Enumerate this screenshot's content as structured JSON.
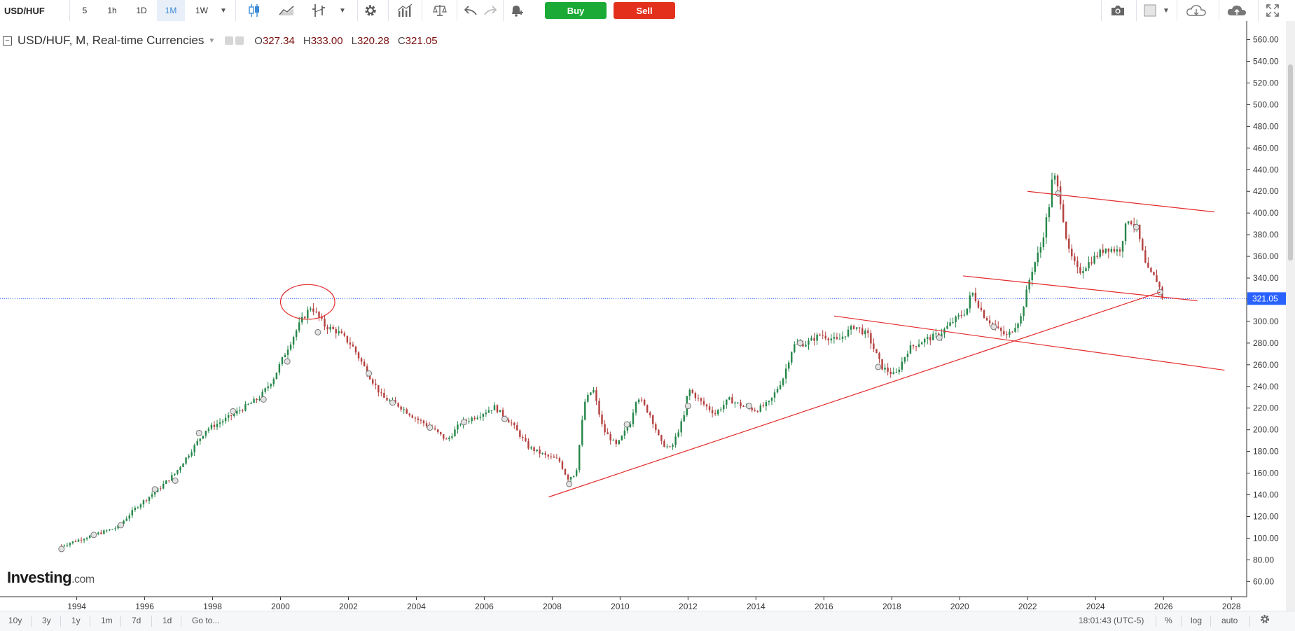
{
  "toolbar": {
    "symbol": "USD/HUF",
    "intervals": [
      "5",
      "1h",
      "1D",
      "1M",
      "1W"
    ],
    "active_interval": "1M",
    "interval_dropdown_icon": "caret-down-icon",
    "chart_type_icons": [
      "candlestick-icon",
      "line-area-icon",
      "indicators-icon",
      "caret-down-icon"
    ],
    "settings_icon": "gear-icon",
    "studies_icon": "bar-chart-icon",
    "compare_icon": "scale-icon",
    "undo_icon": "undo-icon",
    "redo_icon": "redo-icon",
    "alert_icon": "bell-plus-icon",
    "buy_label": "Buy",
    "sell_label": "Sell",
    "snapshot_icon": "camera-icon",
    "color_box_icon": "square-icon",
    "load_icon": "cloud-download-icon",
    "save_icon": "cloud-upload-icon",
    "fullscreen_icon": "fullscreen-icon"
  },
  "legend": {
    "title": "USD/HUF, M, Real-time Currencies",
    "open_label": "O",
    "open": "327.34",
    "high_label": "H",
    "high": "333.00",
    "low_label": "L",
    "low": "320.28",
    "close_label": "C",
    "close": "321.05"
  },
  "chart_data": {
    "type": "candlestick",
    "title": "USD/HUF, M, Real-time Currencies",
    "x_tick_labels": [
      "1994",
      "1996",
      "1998",
      "2000",
      "2002",
      "2004",
      "2006",
      "2008",
      "2010",
      "2012",
      "2014",
      "2016",
      "2018",
      "2020",
      "2022",
      "2024",
      "2026",
      "2028"
    ],
    "y_tick_labels": [
      "60.00",
      "80.00",
      "100.00",
      "120.00",
      "140.00",
      "160.00",
      "180.00",
      "200.00",
      "220.00",
      "240.00",
      "260.00",
      "280.00",
      "300.00",
      "320.00",
      "340.00",
      "360.00",
      "380.00",
      "400.00",
      "420.00",
      "440.00",
      "460.00",
      "480.00",
      "500.00",
      "520.00",
      "540.00",
      "560.00"
    ],
    "ylim": [
      46,
      572
    ],
    "xlim": [
      1991.74,
      2028.45
    ],
    "last_price_label": "321.05",
    "last_price": 321.05,
    "up_color": "#26874a",
    "down_color": "#b54040",
    "price_line_color": "#2962ff",
    "drawing_color": "#e32b2b",
    "anchors": [
      [
        1993.55,
        93
      ],
      [
        1994.2,
        100
      ],
      [
        1994.6,
        104
      ],
      [
        1995.2,
        110
      ],
      [
        1995.8,
        130
      ],
      [
        1996.4,
        145
      ],
      [
        1996.9,
        160
      ],
      [
        1997.4,
        182
      ],
      [
        1997.8,
        200
      ],
      [
        1998.4,
        210
      ],
      [
        1998.9,
        220
      ],
      [
        1999.4,
        230
      ],
      [
        1999.8,
        248
      ],
      [
        2000.2,
        275
      ],
      [
        2000.6,
        300
      ],
      [
        2000.9,
        314
      ],
      [
        2001.3,
        296
      ],
      [
        2001.7,
        290
      ],
      [
        2002.1,
        278
      ],
      [
        2002.5,
        256
      ],
      [
        2003.0,
        230
      ],
      [
        2003.5,
        222
      ],
      [
        2004.0,
        210
      ],
      [
        2004.4,
        203
      ],
      [
        2004.9,
        190
      ],
      [
        2005.3,
        206
      ],
      [
        2005.8,
        213
      ],
      [
        2006.3,
        221
      ],
      [
        2006.8,
        206
      ],
      [
        2007.3,
        184
      ],
      [
        2007.8,
        176
      ],
      [
        2008.2,
        172
      ],
      [
        2008.45,
        155
      ],
      [
        2008.7,
        160
      ],
      [
        2008.95,
        225
      ],
      [
        2009.2,
        238
      ],
      [
        2009.5,
        200
      ],
      [
        2009.9,
        185
      ],
      [
        2010.3,
        207
      ],
      [
        2010.5,
        232
      ],
      [
        2010.9,
        213
      ],
      [
        2011.2,
        188
      ],
      [
        2011.5,
        182
      ],
      [
        2011.9,
        214
      ],
      [
        2012.0,
        238
      ],
      [
        2012.4,
        225
      ],
      [
        2012.8,
        215
      ],
      [
        2013.2,
        228
      ],
      [
        2013.6,
        222
      ],
      [
        2014.0,
        218
      ],
      [
        2014.4,
        225
      ],
      [
        2014.8,
        248
      ],
      [
        2015.1,
        278
      ],
      [
        2015.5,
        280
      ],
      [
        2015.9,
        288
      ],
      [
        2016.4,
        282
      ],
      [
        2016.9,
        296
      ],
      [
        2017.3,
        287
      ],
      [
        2017.7,
        258
      ],
      [
        2018.1,
        250
      ],
      [
        2018.5,
        275
      ],
      [
        2018.9,
        282
      ],
      [
        2019.4,
        288
      ],
      [
        2019.8,
        300
      ],
      [
        2020.2,
        310
      ],
      [
        2020.35,
        328
      ],
      [
        2020.7,
        306
      ],
      [
        2021.1,
        293
      ],
      [
        2021.4,
        286
      ],
      [
        2021.8,
        304
      ],
      [
        2022.1,
        345
      ],
      [
        2022.4,
        370
      ],
      [
        2022.65,
        410
      ],
      [
        2022.75,
        438
      ],
      [
        2022.95,
        415
      ],
      [
        2023.2,
        365
      ],
      [
        2023.5,
        345
      ],
      [
        2023.9,
        357
      ],
      [
        2024.3,
        368
      ],
      [
        2024.7,
        365
      ],
      [
        2024.95,
        395
      ],
      [
        2025.2,
        388
      ],
      [
        2025.5,
        348
      ],
      [
        2025.8,
        338
      ],
      [
        2026.0,
        321.05
      ]
    ],
    "marker_circles": [
      [
        1993.55,
        90
      ],
      [
        1994.5,
        103
      ],
      [
        1995.3,
        112
      ],
      [
        1996.3,
        145
      ],
      [
        1996.9,
        153
      ],
      [
        1997.6,
        197
      ],
      [
        1998.6,
        217
      ],
      [
        1999.5,
        228
      ],
      [
        2000.2,
        263
      ],
      [
        2001.1,
        290
      ],
      [
        2002.6,
        252
      ],
      [
        2003.3,
        225
      ],
      [
        2004.4,
        202
      ],
      [
        2005.4,
        207
      ],
      [
        2006.6,
        210
      ],
      [
        2008.5,
        150
      ],
      [
        2010.2,
        205
      ],
      [
        2012.0,
        222
      ],
      [
        2013.8,
        222
      ],
      [
        2015.3,
        280
      ],
      [
        2017.6,
        258
      ],
      [
        2019.4,
        285
      ],
      [
        2021.0,
        295
      ],
      [
        2022.9,
        418
      ],
      [
        2025.2,
        387
      ],
      [
        2025.9,
        327
      ]
    ],
    "drawings": {
      "ellipse": {
        "center": [
          2000.8,
          318
        ],
        "rx_years": 0.8,
        "ry_price": 16
      },
      "lines": [
        [
          [
            2007.9,
            138
          ],
          [
            2025.9,
            327
          ]
        ],
        [
          [
            2022.0,
            420
          ],
          [
            2027.5,
            401
          ]
        ],
        [
          [
            2020.1,
            342
          ],
          [
            2027.0,
            319
          ]
        ],
        [
          [
            2016.3,
            305
          ],
          [
            2027.8,
            255
          ]
        ]
      ]
    }
  },
  "bottombar": {
    "ranges": [
      "10y",
      "3y",
      "1y",
      "1m",
      "7d",
      "1d"
    ],
    "goto_label": "Go to...",
    "time": "18:01:43 (UTC-5)",
    "percent_label": "%",
    "log_label": "log",
    "auto_label": "auto",
    "settings_icon": "gear-icon"
  },
  "logo": {
    "brand": "Investing",
    "suffix": ".com"
  }
}
